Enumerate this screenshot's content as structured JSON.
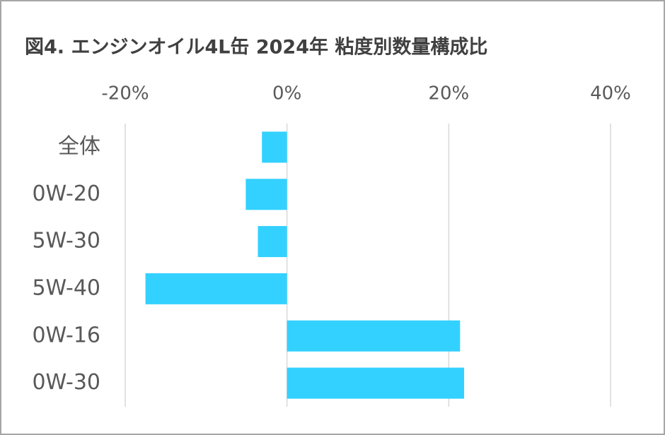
{
  "chart_data": {
    "type": "bar",
    "orientation": "horizontal",
    "title": "図4. エンジンオイル4L缶 2024年 粘度別数量構成比",
    "categories": [
      "全体",
      "0W-20",
      "5W-30",
      "5W-40",
      "0W-16",
      "0W-30"
    ],
    "values": [
      -3.1,
      -5.1,
      -3.6,
      -17.5,
      21.4,
      21.9
    ],
    "color": "#33d1ff",
    "xlim": [
      -20,
      40
    ],
    "xticks": [
      {
        "value": -20,
        "label": "-20%"
      },
      {
        "value": 0,
        "label": "0%"
      },
      {
        "value": 20,
        "label": "20%"
      },
      {
        "value": 40,
        "label": "40%"
      }
    ],
    "grid": true
  }
}
